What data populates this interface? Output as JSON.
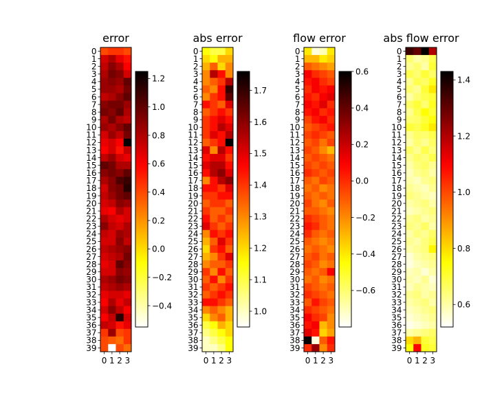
{
  "chart_data": [
    {
      "type": "heatmap",
      "title": "error",
      "x_ticks": [
        "0",
        "1",
        "2",
        "3"
      ],
      "y_ticks": [
        "0",
        "1",
        "2",
        "3",
        "4",
        "5",
        "6",
        "7",
        "8",
        "9",
        "10",
        "11",
        "12",
        "13",
        "14",
        "15",
        "16",
        "17",
        "18",
        "19",
        "20",
        "21",
        "22",
        "23",
        "24",
        "25",
        "26",
        "27",
        "28",
        "29",
        "30",
        "31",
        "32",
        "33",
        "34",
        "35",
        "36",
        "37",
        "38",
        "39"
      ],
      "colormap": "hot_r",
      "vmin": -0.55,
      "vmax": 1.25,
      "colorbar_ticks": [
        "1.2",
        "1.0",
        "0.8",
        "0.6",
        "0.4",
        "0.2",
        "0.0",
        "−0.2",
        "−0.4"
      ],
      "colorbar_values": [
        1.2,
        1.0,
        0.8,
        0.6,
        0.4,
        0.2,
        0.0,
        -0.2,
        -0.4
      ],
      "values": [
        [
          0.4,
          0.45,
          0.45,
          0.4
        ],
        [
          0.7,
          0.8,
          0.65,
          0.55
        ],
        [
          0.75,
          0.9,
          0.8,
          0.6
        ],
        [
          0.8,
          0.95,
          0.9,
          0.7
        ],
        [
          0.85,
          0.9,
          0.85,
          1.0
        ],
        [
          0.85,
          0.85,
          0.8,
          0.95
        ],
        [
          0.75,
          0.8,
          0.9,
          1.0
        ],
        [
          0.9,
          0.95,
          0.95,
          0.85
        ],
        [
          0.95,
          0.9,
          1.0,
          0.8
        ],
        [
          0.8,
          0.95,
          0.8,
          0.75
        ],
        [
          0.85,
          0.8,
          0.9,
          1.0
        ],
        [
          0.7,
          0.85,
          0.75,
          0.95
        ],
        [
          0.65,
          0.7,
          0.6,
          1.25
        ],
        [
          0.6,
          0.7,
          0.55,
          0.75
        ],
        [
          0.75,
          0.85,
          0.7,
          0.65
        ],
        [
          1.0,
          0.95,
          0.8,
          0.8
        ],
        [
          0.9,
          0.95,
          0.9,
          1.0
        ],
        [
          0.8,
          0.9,
          1.05,
          1.1
        ],
        [
          0.7,
          0.9,
          0.95,
          1.15
        ],
        [
          0.75,
          0.85,
          0.95,
          1.0
        ],
        [
          0.7,
          0.75,
          0.9,
          0.85
        ],
        [
          0.65,
          0.6,
          0.8,
          0.7
        ],
        [
          0.8,
          0.7,
          0.65,
          0.7
        ],
        [
          0.9,
          0.75,
          0.7,
          0.8
        ],
        [
          0.75,
          0.7,
          0.85,
          0.8
        ],
        [
          0.7,
          0.7,
          0.9,
          0.75
        ],
        [
          0.75,
          0.8,
          0.85,
          0.9
        ],
        [
          0.7,
          0.75,
          0.8,
          0.95
        ],
        [
          0.65,
          0.7,
          1.0,
          0.9
        ],
        [
          0.7,
          0.7,
          0.9,
          0.85
        ],
        [
          0.8,
          0.85,
          0.95,
          0.9
        ],
        [
          0.75,
          0.8,
          0.85,
          0.8
        ],
        [
          0.65,
          0.7,
          0.7,
          0.65
        ],
        [
          0.6,
          0.8,
          0.65,
          0.75
        ],
        [
          0.7,
          0.9,
          0.75,
          0.6
        ],
        [
          0.6,
          0.75,
          1.15,
          0.7
        ],
        [
          0.75,
          0.7,
          0.55,
          0.65
        ],
        [
          0.45,
          0.85,
          0.4,
          0.45
        ],
        [
          0.4,
          0.35,
          0.3,
          0.45
        ],
        [
          0.4,
          -0.55,
          0.4,
          0.3
        ]
      ]
    },
    {
      "type": "heatmap",
      "title": "abs error",
      "x_ticks": [
        "0",
        "1",
        "2",
        "3"
      ],
      "y_ticks": [
        "0",
        "1",
        "2",
        "3",
        "4",
        "5",
        "6",
        "7",
        "8",
        "9",
        "10",
        "11",
        "12",
        "13",
        "14",
        "15",
        "16",
        "17",
        "18",
        "19",
        "20",
        "21",
        "22",
        "23",
        "24",
        "25",
        "26",
        "27",
        "28",
        "29",
        "30",
        "31",
        "32",
        "33",
        "34",
        "35",
        "36",
        "37",
        "38",
        "39"
      ],
      "colormap": "hot_r",
      "vmin": 0.95,
      "vmax": 1.76,
      "colorbar_ticks": [
        "1.7",
        "1.6",
        "1.5",
        "1.4",
        "1.3",
        "1.2",
        "1.1",
        "1.0"
      ],
      "colorbar_values": [
        1.7,
        1.6,
        1.5,
        1.4,
        1.3,
        1.2,
        1.1,
        1.0
      ],
      "values": [
        [
          1.15,
          1.1,
          1.1,
          1.2
        ],
        [
          1.2,
          1.15,
          1.25,
          1.25
        ],
        [
          1.25,
          1.35,
          1.2,
          1.3
        ],
        [
          1.3,
          1.55,
          1.45,
          1.3
        ],
        [
          1.3,
          1.35,
          1.4,
          1.55
        ],
        [
          1.35,
          1.3,
          1.45,
          1.7
        ],
        [
          1.3,
          1.4,
          1.45,
          1.65
        ],
        [
          1.45,
          1.4,
          1.35,
          1.5
        ],
        [
          1.35,
          1.4,
          1.45,
          1.4
        ],
        [
          1.4,
          1.45,
          1.5,
          1.45
        ],
        [
          1.4,
          1.45,
          1.55,
          1.5
        ],
        [
          1.4,
          1.5,
          1.45,
          1.55
        ],
        [
          1.35,
          1.4,
          1.45,
          1.76
        ],
        [
          1.5,
          1.3,
          1.55,
          1.45
        ],
        [
          1.45,
          1.5,
          1.5,
          1.4
        ],
        [
          1.5,
          1.55,
          1.55,
          1.45
        ],
        [
          1.45,
          1.55,
          1.6,
          1.5
        ],
        [
          1.3,
          1.45,
          1.55,
          1.6
        ],
        [
          1.45,
          1.45,
          1.4,
          1.5
        ],
        [
          1.4,
          1.4,
          1.45,
          1.45
        ],
        [
          1.35,
          1.4,
          1.4,
          1.35
        ],
        [
          1.4,
          1.35,
          1.35,
          1.4
        ],
        [
          1.45,
          1.35,
          1.4,
          1.35
        ],
        [
          1.5,
          1.4,
          1.35,
          1.4
        ],
        [
          1.3,
          1.45,
          1.4,
          1.45
        ],
        [
          1.25,
          1.35,
          1.5,
          1.4
        ],
        [
          1.2,
          1.4,
          1.45,
          1.35
        ],
        [
          1.25,
          1.3,
          1.4,
          1.5
        ],
        [
          1.3,
          1.35,
          1.35,
          1.4
        ],
        [
          1.4,
          1.3,
          1.45,
          1.35
        ],
        [
          1.35,
          1.45,
          1.3,
          1.4
        ],
        [
          1.4,
          1.35,
          1.4,
          1.45
        ],
        [
          1.35,
          1.4,
          1.45,
          1.4
        ],
        [
          1.45,
          1.45,
          1.4,
          1.35
        ],
        [
          1.3,
          1.35,
          1.3,
          1.25
        ],
        [
          1.2,
          1.3,
          1.35,
          1.25
        ],
        [
          1.1,
          1.15,
          1.25,
          1.2
        ],
        [
          1.05,
          1.1,
          1.15,
          1.2
        ],
        [
          1.0,
          1.05,
          1.1,
          1.15
        ],
        [
          1.0,
          1.0,
          1.05,
          1.15
        ]
      ]
    },
    {
      "type": "heatmap",
      "title": "flow error",
      "x_ticks": [
        "0",
        "1",
        "2",
        "3"
      ],
      "y_ticks": [
        "0",
        "1",
        "2",
        "3",
        "4",
        "5",
        "6",
        "7",
        "8",
        "9",
        "10",
        "11",
        "12",
        "13",
        "14",
        "15",
        "16",
        "17",
        "18",
        "19",
        "20",
        "21",
        "22",
        "23",
        "24",
        "25",
        "26",
        "27",
        "28",
        "29",
        "30",
        "31",
        "32",
        "33",
        "34",
        "35",
        "36",
        "37",
        "38",
        "39"
      ],
      "colormap": "hot_r",
      "vmin": -0.8,
      "vmax": 0.6,
      "colorbar_ticks": [
        "0.6",
        "0.4",
        "0.2",
        "0.0",
        "−0.2",
        "−0.4",
        "−0.6"
      ],
      "colorbar_values": [
        0.6,
        0.4,
        0.2,
        0.0,
        -0.2,
        -0.4,
        -0.6
      ],
      "values": [
        [
          -0.4,
          -0.75,
          -0.7,
          -0.4
        ],
        [
          -0.3,
          -0.3,
          -0.4,
          -0.35
        ],
        [
          -0.1,
          -0.15,
          -0.2,
          -0.25
        ],
        [
          0.1,
          0.0,
          -0.05,
          -0.1
        ],
        [
          0.05,
          0.1,
          0.0,
          -0.05
        ],
        [
          0.0,
          0.1,
          0.05,
          0.1
        ],
        [
          0.05,
          0.0,
          0.1,
          0.15
        ],
        [
          0.1,
          0.05,
          0.15,
          0.0
        ],
        [
          0.05,
          0.1,
          0.0,
          0.05
        ],
        [
          -0.05,
          0.05,
          0.1,
          0.0
        ],
        [
          -0.1,
          -0.05,
          0.0,
          0.05
        ],
        [
          -0.05,
          0.0,
          -0.05,
          -0.1
        ],
        [
          -0.1,
          -0.05,
          -0.15,
          -0.05
        ],
        [
          -0.05,
          -0.1,
          -0.2,
          -0.3
        ],
        [
          -0.1,
          -0.05,
          -0.1,
          -0.15
        ],
        [
          -0.05,
          -0.1,
          -0.05,
          -0.1
        ],
        [
          0.0,
          -0.05,
          -0.1,
          -0.05
        ],
        [
          -0.1,
          -0.15,
          -0.05,
          -0.1
        ],
        [
          -0.15,
          -0.1,
          -0.2,
          -0.15
        ],
        [
          -0.1,
          -0.15,
          -0.1,
          -0.15
        ],
        [
          -0.05,
          -0.15,
          -0.2,
          -0.1
        ],
        [
          -0.1,
          -0.1,
          -0.15,
          -0.2
        ],
        [
          0.0,
          -0.05,
          -0.1,
          -0.15
        ],
        [
          0.05,
          0.0,
          -0.1,
          -0.15
        ],
        [
          0.0,
          -0.1,
          -0.15,
          -0.1
        ],
        [
          -0.1,
          -0.15,
          -0.2,
          -0.15
        ],
        [
          -0.15,
          -0.1,
          -0.15,
          -0.2
        ],
        [
          -0.1,
          -0.05,
          -0.15,
          -0.1
        ],
        [
          -0.05,
          -0.1,
          -0.2,
          -0.15
        ],
        [
          -0.1,
          -0.15,
          -0.1,
          0.1
        ],
        [
          -0.15,
          -0.1,
          -0.2,
          -0.15
        ],
        [
          -0.05,
          -0.1,
          -0.15,
          -0.1
        ],
        [
          0.0,
          -0.05,
          -0.1,
          -0.15
        ],
        [
          -0.1,
          0.05,
          -0.05,
          -0.1
        ],
        [
          0.0,
          -0.05,
          -0.1,
          -0.15
        ],
        [
          0.1,
          0.0,
          -0.05,
          -0.2
        ],
        [
          0.05,
          0.1,
          -0.3,
          -0.2
        ],
        [
          0.15,
          0.05,
          -0.35,
          -0.25
        ],
        [
          0.6,
          -0.75,
          -0.1,
          0.05
        ],
        [
          0.0,
          0.3,
          -0.2,
          0.0
        ]
      ]
    },
    {
      "type": "heatmap",
      "title": "abs flow error",
      "x_ticks": [
        "0",
        "1",
        "2",
        "3"
      ],
      "y_ticks": [
        "0",
        "1",
        "2",
        "3",
        "4",
        "5",
        "6",
        "7",
        "8",
        "9",
        "10",
        "11",
        "12",
        "13",
        "14",
        "15",
        "16",
        "17",
        "18",
        "19",
        "20",
        "21",
        "22",
        "23",
        "24",
        "25",
        "26",
        "27",
        "28",
        "29",
        "30",
        "31",
        "32",
        "33",
        "34",
        "35",
        "36",
        "37",
        "38",
        "39"
      ],
      "colormap": "hot_r",
      "vmin": 0.52,
      "vmax": 1.43,
      "colorbar_ticks": [
        "1.4",
        "1.2",
        "1.0",
        "0.8",
        "0.6"
      ],
      "colorbar_values": [
        1.4,
        1.2,
        1.0,
        0.8,
        0.6
      ],
      "values": [
        [
          1.35,
          1.3,
          1.43,
          1.2
        ],
        [
          0.65,
          0.6,
          0.62,
          0.68
        ],
        [
          0.62,
          0.65,
          0.6,
          0.7
        ],
        [
          0.68,
          0.65,
          0.7,
          0.66
        ],
        [
          0.62,
          0.68,
          0.66,
          0.72
        ],
        [
          0.65,
          0.62,
          0.7,
          0.78
        ],
        [
          0.6,
          0.65,
          0.68,
          0.7
        ],
        [
          0.66,
          0.7,
          0.65,
          0.72
        ],
        [
          0.62,
          0.68,
          0.75,
          0.7
        ],
        [
          0.65,
          0.66,
          0.7,
          0.74
        ],
        [
          0.7,
          0.68,
          0.72,
          0.78
        ],
        [
          0.62,
          0.66,
          0.65,
          0.68
        ],
        [
          0.6,
          0.65,
          0.62,
          0.66
        ],
        [
          0.66,
          0.62,
          0.68,
          0.64
        ],
        [
          0.62,
          0.66,
          0.64,
          0.68
        ],
        [
          0.6,
          0.64,
          0.66,
          0.62
        ],
        [
          0.58,
          0.62,
          0.64,
          0.6
        ],
        [
          0.6,
          0.58,
          0.62,
          0.64
        ],
        [
          0.62,
          0.6,
          0.58,
          0.62
        ],
        [
          0.64,
          0.62,
          0.6,
          0.58
        ],
        [
          0.6,
          0.62,
          0.64,
          0.6
        ],
        [
          0.58,
          0.6,
          0.62,
          0.64
        ],
        [
          0.62,
          0.64,
          0.6,
          0.62
        ],
        [
          0.64,
          0.62,
          0.66,
          0.6
        ],
        [
          0.6,
          0.64,
          0.62,
          0.66
        ],
        [
          0.62,
          0.6,
          0.64,
          0.68
        ],
        [
          0.6,
          0.62,
          0.64,
          0.76
        ],
        [
          0.56,
          0.6,
          0.62,
          0.64
        ],
        [
          0.55,
          0.58,
          0.6,
          0.62
        ],
        [
          0.58,
          0.6,
          0.56,
          0.6
        ],
        [
          0.6,
          0.58,
          0.62,
          0.56
        ],
        [
          0.58,
          0.62,
          0.6,
          0.58
        ],
        [
          0.62,
          0.64,
          0.6,
          0.62
        ],
        [
          0.6,
          0.62,
          0.64,
          0.6
        ],
        [
          0.58,
          0.6,
          0.62,
          0.64
        ],
        [
          0.56,
          0.58,
          0.6,
          0.62
        ],
        [
          0.54,
          0.56,
          0.58,
          0.6
        ],
        [
          0.6,
          0.62,
          0.64,
          0.66
        ],
        [
          0.8,
          0.85,
          0.7,
          0.68
        ],
        [
          0.75,
          1.1,
          0.72,
          0.7
        ]
      ]
    }
  ]
}
